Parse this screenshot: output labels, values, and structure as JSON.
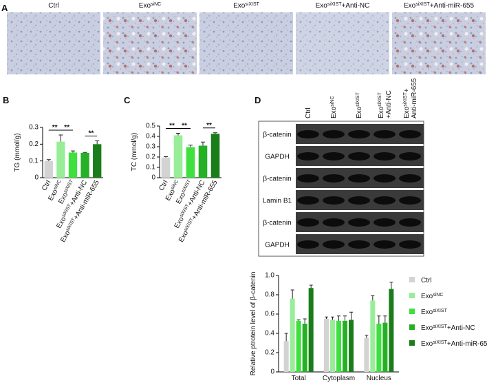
{
  "panel_labels": [
    "A",
    "B",
    "C",
    "D"
  ],
  "image_labels": [
    [
      "Ctrl"
    ],
    [
      "Exo",
      "siNC"
    ],
    [
      "Exo",
      "siXIST"
    ],
    [
      "Exo",
      "siXIST",
      "+Anti-NC"
    ],
    [
      "Exo",
      "siXIST",
      "+Anti-miR-655"
    ]
  ],
  "blot": {
    "columns": [
      [
        [
          "Ctrl"
        ]
      ],
      [
        [
          "Exo",
          "siNC"
        ]
      ],
      [
        [
          "Exo",
          "siXIST"
        ]
      ],
      [
        [
          "Exo",
          "siXIST"
        ],
        [
          "+Anti-NC"
        ]
      ],
      [
        [
          "Exo",
          "siXIST",
          "+"
        ],
        [
          "Anti-miR-655"
        ]
      ]
    ],
    "rows": [
      "β-catenin",
      "GAPDH",
      "β-catenin",
      "Lamin B1",
      "β-catenin",
      "GAPDH"
    ]
  },
  "chart_data": [
    {
      "type": "bar",
      "y_label": "TG (mmol/g)",
      "categories": [
        [
          "Ctrl"
        ],
        [
          "Exo",
          "siNC"
        ],
        [
          "Exo",
          "siXIST"
        ],
        [
          "Exo",
          "siXIST",
          "+Anti-NC"
        ],
        [
          "Exo",
          "siXIST",
          "+Anti-miR-655"
        ]
      ],
      "values": [
        0.1,
        0.215,
        0.15,
        0.148,
        0.2
      ],
      "errors": [
        0.008,
        0.04,
        0.01,
        0.003,
        0.02
      ],
      "colors": [
        "#d3d3d3",
        "#98ee98",
        "#3ee03e",
        "#25b025",
        "#1a7d1a"
      ],
      "ylim": [
        0,
        0.3
      ],
      "yticks": [
        0,
        0.1,
        0.2,
        0.3
      ],
      "annotations": [
        {
          "text": "**",
          "between": [
            0,
            1
          ]
        },
        {
          "text": "**",
          "between": [
            1,
            2
          ]
        },
        {
          "text": "**",
          "between": [
            3,
            4
          ]
        }
      ]
    },
    {
      "type": "bar",
      "y_label": "TC (mmol/g)",
      "categories": [
        [
          "Ctrl"
        ],
        [
          "Exo",
          "siNC"
        ],
        [
          "Exo",
          "siXIST"
        ],
        [
          "Exo",
          "siXIST",
          "+Anti-NC"
        ],
        [
          "Exo",
          "siXIST",
          "+Anti-miR-655"
        ]
      ],
      "values": [
        0.195,
        0.41,
        0.295,
        0.31,
        0.425
      ],
      "errors": [
        0.008,
        0.02,
        0.02,
        0.035,
        0.01
      ],
      "colors": [
        "#d3d3d3",
        "#98ee98",
        "#3ee03e",
        "#25b025",
        "#1a7d1a"
      ],
      "ylim": [
        0,
        0.5
      ],
      "yticks": [
        0,
        0.1,
        0.2,
        0.3,
        0.4,
        0.5
      ],
      "annotations": [
        {
          "text": "**",
          "between": [
            0,
            1
          ]
        },
        {
          "text": "**",
          "between": [
            1,
            2
          ]
        },
        {
          "text": "**",
          "between": [
            3,
            4
          ]
        }
      ]
    },
    {
      "type": "grouped_bar",
      "y_label": "Relative ptrotein level of β-catenin",
      "categories": [
        "Total",
        "Cytoplasm",
        "Nucleus"
      ],
      "series": [
        {
          "name": [
            "Ctrl"
          ],
          "color": "#d3d3d3",
          "values": [
            0.32,
            0.55,
            0.35
          ],
          "errors": [
            0.08,
            0.02,
            0.03
          ]
        },
        {
          "name": [
            "Exo",
            "siNC"
          ],
          "color": "#98ee98",
          "values": [
            0.76,
            0.54,
            0.74
          ],
          "errors": [
            0.09,
            0.03,
            0.05
          ]
        },
        {
          "name": [
            "Exo",
            "siXIST"
          ],
          "color": "#3ee03e",
          "values": [
            0.53,
            0.53,
            0.5
          ],
          "errors": [
            0.01,
            0.05,
            0.08
          ]
        },
        {
          "name": [
            "Exo",
            "siXIST",
            "+Anti-NC"
          ],
          "color": "#25b025",
          "values": [
            0.5,
            0.53,
            0.51
          ],
          "errors": [
            0.05,
            0.05,
            0.07
          ]
        },
        {
          "name": [
            "Exo",
            "siXIST",
            "+Anti-miR-655"
          ],
          "color": "#1a7d1a",
          "values": [
            0.87,
            0.54,
            0.86
          ],
          "errors": [
            0.03,
            0.08,
            0.07
          ]
        }
      ],
      "ylim": [
        0,
        1
      ],
      "yticks": [
        0,
        0.2,
        0.4,
        0.6,
        0.8,
        {
          "value": 1,
          "label": "1.0"
        }
      ]
    }
  ]
}
